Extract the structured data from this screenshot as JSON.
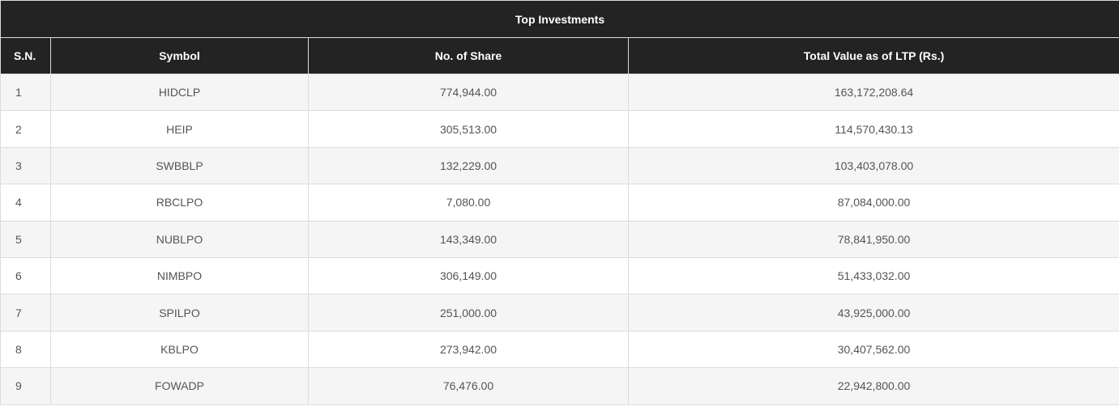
{
  "table": {
    "title": "Top Investments",
    "headers": {
      "sn": "S.N.",
      "symbol": "Symbol",
      "shares": "No. of Share",
      "value": "Total Value as of LTP (Rs.)"
    },
    "rows": [
      {
        "sn": "1",
        "symbol": "HIDCLP",
        "shares": "774,944.00",
        "value": "163,172,208.64"
      },
      {
        "sn": "2",
        "symbol": "HEIP",
        "shares": "305,513.00",
        "value": "114,570,430.13"
      },
      {
        "sn": "3",
        "symbol": "SWBBLP",
        "shares": "132,229.00",
        "value": "103,403,078.00"
      },
      {
        "sn": "4",
        "symbol": "RBCLPO",
        "shares": "7,080.00",
        "value": "87,084,000.00"
      },
      {
        "sn": "5",
        "symbol": "NUBLPO",
        "shares": "143,349.00",
        "value": "78,841,950.00"
      },
      {
        "sn": "6",
        "symbol": "NIMBPO",
        "shares": "306,149.00",
        "value": "51,433,032.00"
      },
      {
        "sn": "7",
        "symbol": "SPILPO",
        "shares": "251,000.00",
        "value": "43,925,000.00"
      },
      {
        "sn": "8",
        "symbol": "KBLPO",
        "shares": "273,942.00",
        "value": "30,407,562.00"
      },
      {
        "sn": "9",
        "symbol": "FOWADP",
        "shares": "76,476.00",
        "value": "22,942,800.00"
      }
    ]
  }
}
